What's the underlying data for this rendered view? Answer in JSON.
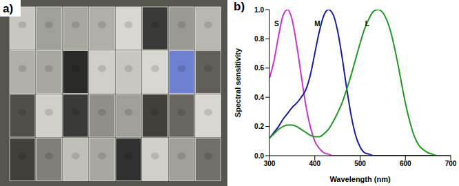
{
  "photo": {
    "label": "a)"
  },
  "chart_data": {
    "type": "line",
    "title": "b)",
    "x_label": "Wavelength (nm)",
    "y_label": "Spectral sensitivity",
    "x": [
      300,
      310,
      320,
      330,
      340,
      350,
      360,
      370,
      380,
      390,
      400,
      410,
      420,
      430,
      440,
      450,
      460,
      470,
      480,
      490,
      500,
      510,
      520,
      530,
      540,
      550,
      560,
      570,
      580,
      590,
      600,
      610,
      620,
      630,
      640,
      650,
      660,
      670,
      680,
      690,
      700
    ],
    "series": [
      {
        "name": "S",
        "color": "#cc33cc",
        "values": [
          0.53,
          0.65,
          0.82,
          0.96,
          1.0,
          0.93,
          0.76,
          0.55,
          0.35,
          0.2,
          0.1,
          0.05,
          0.02,
          0.01,
          0,
          0,
          0,
          0,
          0,
          0,
          0,
          0,
          0,
          0,
          0,
          0,
          0,
          0,
          0,
          0,
          0,
          0,
          0,
          0,
          0,
          0,
          0,
          0,
          0,
          0,
          0
        ]
      },
      {
        "name": "M",
        "color": "#1a1aa8",
        "values": [
          0.12,
          0.16,
          0.2,
          0.25,
          0.29,
          0.33,
          0.36,
          0.4,
          0.45,
          0.55,
          0.7,
          0.85,
          0.96,
          1.0,
          0.97,
          0.86,
          0.68,
          0.47,
          0.28,
          0.14,
          0.06,
          0.02,
          0.01,
          0,
          0,
          0,
          0,
          0,
          0,
          0,
          0,
          0,
          0,
          0,
          0,
          0,
          0,
          0,
          0,
          0,
          0
        ]
      },
      {
        "name": "L",
        "color": "#229922",
        "values": [
          0.12,
          0.15,
          0.18,
          0.2,
          0.21,
          0.21,
          0.2,
          0.18,
          0.16,
          0.14,
          0.13,
          0.13,
          0.15,
          0.18,
          0.23,
          0.29,
          0.36,
          0.45,
          0.55,
          0.66,
          0.77,
          0.87,
          0.94,
          0.99,
          1.0,
          0.98,
          0.92,
          0.82,
          0.68,
          0.52,
          0.36,
          0.23,
          0.13,
          0.07,
          0.04,
          0.02,
          0.01,
          0,
          0,
          0,
          0
        ]
      }
    ],
    "xlim": [
      300,
      700
    ],
    "xticks": [
      300,
      400,
      500,
      600,
      700
    ],
    "ylim": [
      0,
      1
    ],
    "yticks": [
      {
        "value": 0,
        "label": "0.0"
      },
      {
        "value": 0.2,
        "label": "0.2"
      },
      {
        "value": 0.4,
        "label": "0.4"
      },
      {
        "value": 0.6,
        "label": "0.6"
      },
      {
        "value": 0.8,
        "label": "0.8"
      },
      {
        "value": 1,
        "label": "1.0"
      }
    ]
  }
}
